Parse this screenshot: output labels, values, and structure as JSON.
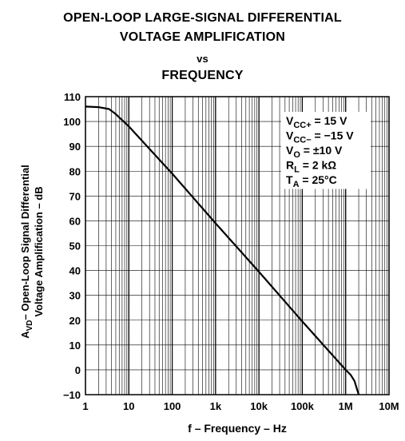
{
  "title": {
    "line1": "OPEN-LOOP LARGE-SIGNAL DIFFERENTIAL",
    "line2": "VOLTAGE AMPLIFICATION",
    "line3": "vs",
    "line4": "FREQUENCY"
  },
  "conditions": [
    {
      "main": "V",
      "sub": "CC+",
      "rest": " = 15 V"
    },
    {
      "main": "V",
      "sub": "CC−",
      "rest": " = −15 V"
    },
    {
      "main": "V",
      "sub": "O",
      "rest": " = ±10 V"
    },
    {
      "main": "R",
      "sub": "L",
      "rest": " = 2 kΩ"
    },
    {
      "main": "T",
      "sub": "A",
      "rest": " = 25°C"
    }
  ],
  "chart_data": {
    "type": "line",
    "x_scale": "log",
    "xlim": [
      1,
      10000000
    ],
    "ylim": [
      -10,
      110
    ],
    "xlabel": "f – Frequency – Hz",
    "ylabel_line1": "A",
    "ylabel_sub": "VD",
    "ylabel_line1_rest": "– Open-Loop Signal Differential",
    "ylabel_line2": "Voltage Amplification – dB",
    "x_ticks": [
      {
        "value": 1,
        "label": "1"
      },
      {
        "value": 10,
        "label": "10"
      },
      {
        "value": 100,
        "label": "100"
      },
      {
        "value": 1000,
        "label": "1k"
      },
      {
        "value": 10000,
        "label": "10k"
      },
      {
        "value": 100000,
        "label": "100k"
      },
      {
        "value": 1000000,
        "label": "1M"
      },
      {
        "value": 10000000,
        "label": "10M"
      }
    ],
    "y_ticks": [
      110,
      100,
      90,
      80,
      70,
      60,
      50,
      40,
      30,
      20,
      10,
      0,
      -10
    ],
    "y_tick_labels": [
      "110",
      "100",
      "90",
      "80",
      "70",
      "60",
      "50",
      "40",
      "30",
      "20",
      "10",
      "0",
      "−10"
    ],
    "grid": true,
    "series": [
      {
        "x": [
          1,
          2,
          3.5,
          5,
          10,
          100,
          1000,
          10000,
          100000,
          1000000,
          1300000,
          1600000,
          1800000,
          2000000
        ],
        "y": [
          106,
          105.8,
          105,
          103,
          98,
          79,
          59,
          39.5,
          19.5,
          0,
          -2,
          -4.5,
          -7.5,
          -10
        ]
      }
    ]
  }
}
